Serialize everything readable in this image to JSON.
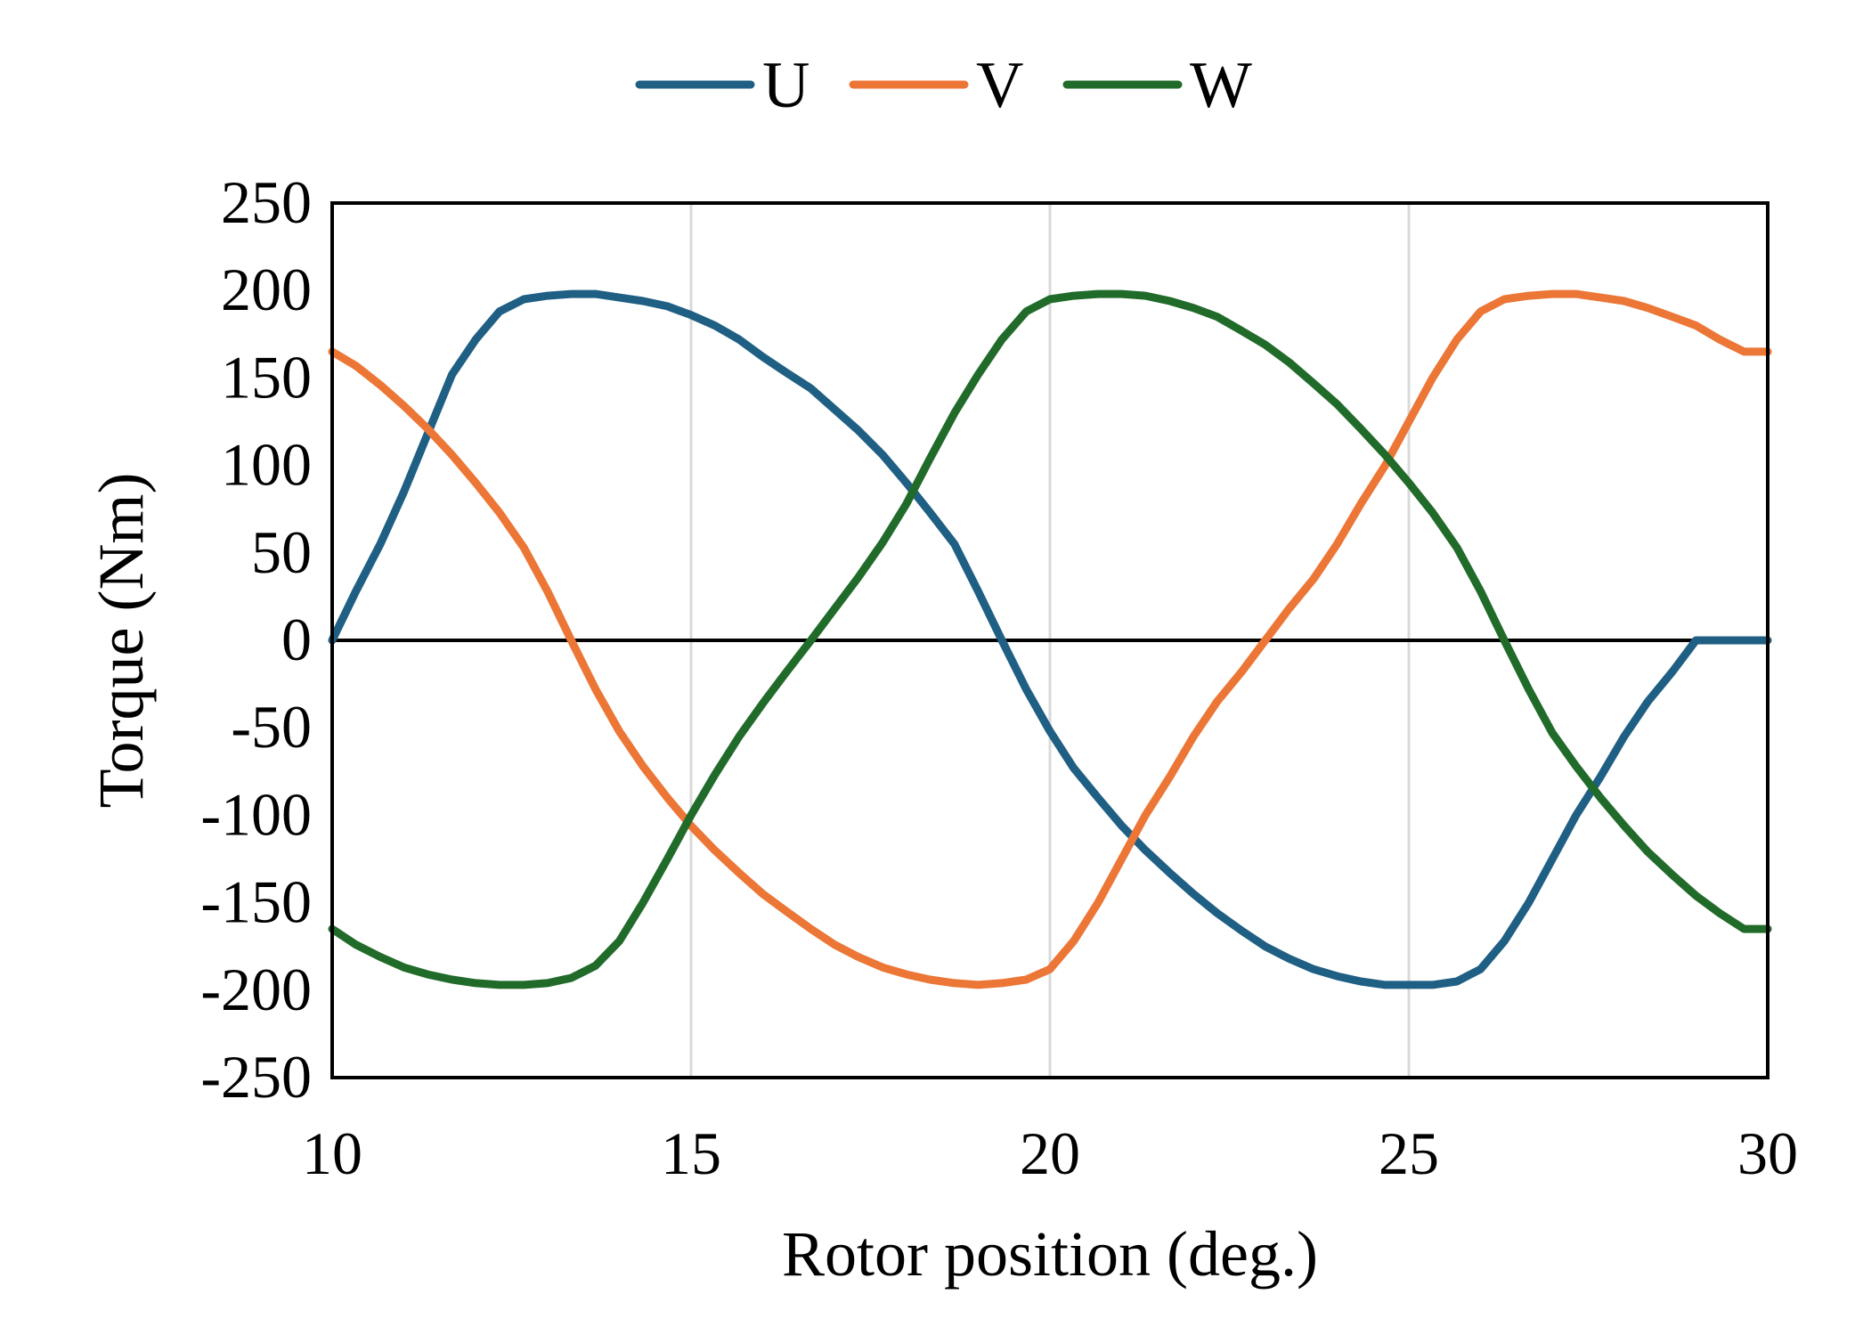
{
  "chart_data": {
    "type": "line",
    "xlabel": "Rotor position (deg.)",
    "ylabel": "Torque (Nm)",
    "xlim": [
      10,
      30
    ],
    "ylim": [
      -250,
      250
    ],
    "xticks": [
      10,
      15,
      20,
      25,
      30
    ],
    "yticks": [
      250,
      200,
      150,
      100,
      50,
      0,
      -50,
      -100,
      -150,
      -200,
      -250
    ],
    "grid": "vertical",
    "legend": "top-center",
    "x": [
      10.0,
      10.33,
      10.67,
      11.0,
      11.33,
      11.67,
      12.0,
      12.33,
      12.67,
      13.0,
      13.33,
      13.67,
      14.0,
      14.33,
      14.67,
      15.0,
      15.33,
      15.67,
      16.0,
      16.33,
      16.67,
      17.0,
      17.33,
      17.67,
      18.0,
      18.33,
      18.67,
      19.0,
      19.33,
      19.67,
      20.0,
      20.33,
      20.67,
      21.0,
      21.33,
      21.67,
      22.0,
      22.33,
      22.67,
      23.0,
      23.33,
      23.67,
      24.0,
      24.33,
      24.67,
      25.0,
      25.33,
      25.67,
      26.0,
      26.33,
      26.67,
      27.0,
      27.33,
      27.67,
      28.0,
      28.33,
      28.67,
      29.0,
      29.33,
      29.67,
      30.0
    ],
    "series": [
      {
        "name": "U",
        "color": "#1f5f84",
        "values": [
          0,
          28,
          55,
          85,
          118,
          152,
          172,
          188,
          195,
          197,
          198,
          198,
          196,
          194,
          191,
          186,
          180,
          172,
          162,
          153,
          144,
          132,
          120,
          106,
          90,
          73,
          55,
          28,
          0,
          -28,
          -52,
          -73,
          -90,
          -106,
          -120,
          -133,
          -145,
          -156,
          -166,
          -175,
          -182,
          -188,
          -192,
          -195,
          -197,
          -197,
          -197,
          -195,
          -188,
          -172,
          -150,
          -125,
          -100,
          -78,
          -55,
          -35,
          -18,
          0,
          0,
          0,
          0
        ]
      },
      {
        "name": "V",
        "color": "#ec7636",
        "values": [
          165,
          157,
          146,
          134,
          121,
          106,
          90,
          73,
          53,
          28,
          0,
          -28,
          -52,
          -72,
          -90,
          -106,
          -120,
          -133,
          -145,
          -155,
          -165,
          -174,
          -181,
          -187,
          -191,
          -194,
          -196,
          -197,
          -196,
          -194,
          -188,
          -172,
          -150,
          -125,
          -100,
          -78,
          -55,
          -35,
          -18,
          0,
          18,
          35,
          55,
          78,
          100,
          125,
          150,
          172,
          188,
          195,
          197,
          198,
          198,
          196,
          194,
          190,
          185,
          180,
          172,
          165,
          165
        ]
      },
      {
        "name": "W",
        "color": "#216b2a",
        "values": [
          -165,
          -174,
          -181,
          -187,
          -191,
          -194,
          -196,
          -197,
          -197,
          -196,
          -193,
          -186,
          -172,
          -150,
          -125,
          -100,
          -77,
          -55,
          -36,
          -18,
          0,
          18,
          36,
          56,
          78,
          104,
          130,
          152,
          172,
          188,
          195,
          197,
          198,
          198,
          197,
          194,
          190,
          185,
          177,
          169,
          159,
          147,
          135,
          121,
          106,
          90,
          73,
          53,
          28,
          0,
          -28,
          -53,
          -72,
          -90,
          -106,
          -121,
          -134,
          -146,
          -156,
          -165,
          -165
        ]
      }
    ]
  }
}
